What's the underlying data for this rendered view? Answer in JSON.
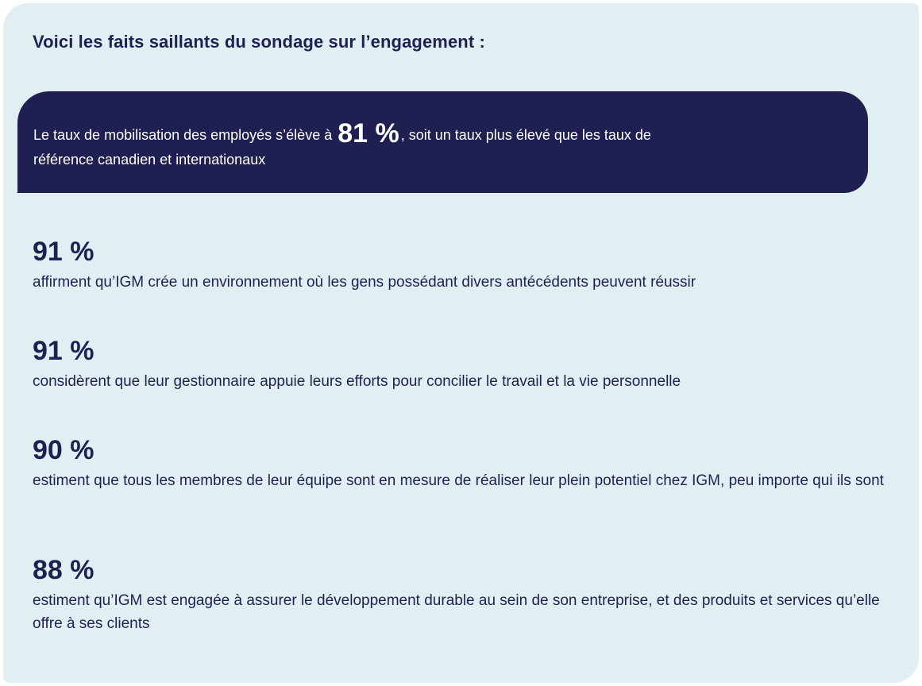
{
  "title": "Voici les faits saillants du sondage sur l’engagement :",
  "banner": {
    "text_before": "Le taux de mobilisation des employés s’élève à",
    "highlight": "81 %",
    "text_after": ", soit un taux plus élevé que les taux de",
    "line2": "référence canadien et internationaux"
  },
  "stats": [
    {
      "value": "91 %",
      "description": "affirment qu’IGM crée un environnement où les gens possédant divers antécédents peuvent réussir"
    },
    {
      "value": "91 %",
      "description": "considèrent que leur gestionnaire appuie leurs efforts pour concilier le travail et la vie personnelle"
    },
    {
      "value": "90 %",
      "description": "estiment que tous les membres de leur équipe sont en mesure de réaliser leur plein potentiel chez IGM, peu importe qui ils sont"
    },
    {
      "value": "88 %",
      "description": "estiment qu’IGM est engagée à assurer le développement durable au sein de son entreprise, et des produits et services qu’elle offre à ses clients"
    }
  ],
  "colors": {
    "panel": "#e1eff2",
    "banner": "#1f1f52",
    "text": "#1f2152"
  }
}
